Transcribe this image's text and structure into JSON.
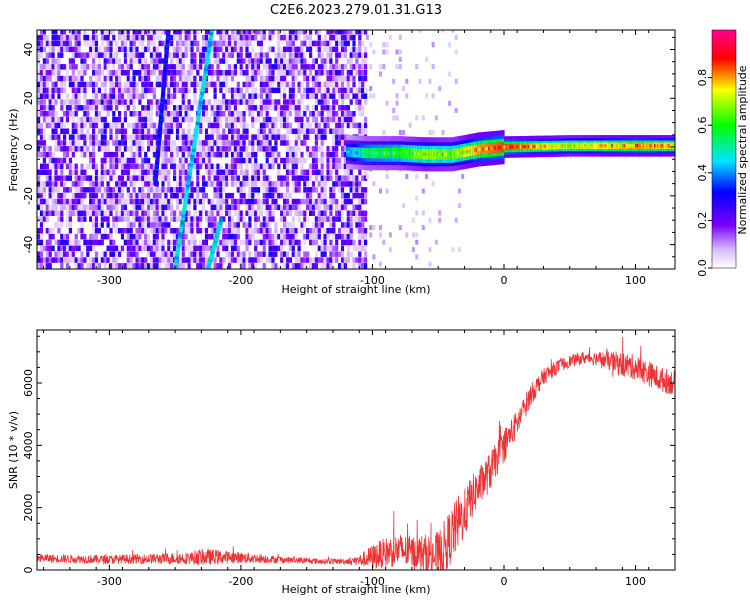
{
  "title": "C2E6.2023.279.01.31.G13",
  "chart_data": [
    {
      "type": "heatmap",
      "xlabel": "Height of straight line (km)",
      "ylabel": "Frequency (Hz)",
      "xlim": [
        -355,
        130
      ],
      "ylim": [
        -50,
        48
      ],
      "xticks": [
        -300,
        -200,
        -100,
        0,
        100
      ],
      "yticks": [
        -40,
        -20,
        0,
        20,
        40
      ],
      "colorbar": {
        "label": "Normalized spectral amplitude",
        "range": [
          0,
          1
        ],
        "ticks": [
          0.0,
          0.2,
          0.4,
          0.6,
          0.8
        ],
        "colors": [
          "#ffffff",
          "#d6b8ff",
          "#7a00ff",
          "#0000ff",
          "#00e6ff",
          "#00ff00",
          "#ffff00",
          "#ff0000",
          "#ff0090"
        ]
      },
      "features": {
        "noise_region_x": [
          -355,
          -105
        ],
        "carrier_line": [
          {
            "x": -120,
            "y": -2,
            "amp": 0.4
          },
          {
            "x": -105,
            "y": -2.5,
            "amp": 0.55
          },
          {
            "x": -80,
            "y": -2.5,
            "amp": 0.6
          },
          {
            "x": -60,
            "y": -3,
            "amp": 0.7
          },
          {
            "x": -40,
            "y": -3,
            "amp": 0.65
          },
          {
            "x": -20,
            "y": -1,
            "amp": 0.8
          },
          {
            "x": 0,
            "y": 0,
            "amp": 0.85
          },
          {
            "x": 50,
            "y": 0.5,
            "amp": 0.7
          },
          {
            "x": 100,
            "y": 0.5,
            "amp": 0.8
          },
          {
            "x": 130,
            "y": 0.5,
            "amp": 0.75
          }
        ],
        "diagonal_streaks": [
          {
            "x1": -265,
            "y1": -15,
            "x2": -255,
            "y2": 48,
            "amp": 0.3
          },
          {
            "x1": -250,
            "y1": -50,
            "x2": -222,
            "y2": 48,
            "amp": 0.45
          },
          {
            "x1": -225,
            "y1": -50,
            "x2": -215,
            "y2": -30,
            "amp": 0.45
          }
        ]
      }
    },
    {
      "type": "line",
      "xlabel": "Height of straight line (km)",
      "ylabel": "SNR (10 * v/v)",
      "xlim": [
        -355,
        130
      ],
      "ylim": [
        0,
        7700
      ],
      "xticks": [
        -300,
        -200,
        -100,
        0,
        100
      ],
      "yticks": [
        0,
        2000,
        4000,
        6000
      ],
      "color": "#ee3333",
      "series": [
        {
          "x": [
            -355,
            -330,
            -300,
            -270,
            -240,
            -230,
            -200,
            -170,
            -140,
            -120,
            -110,
            -100,
            -90,
            -80,
            -70,
            -60,
            -50,
            -40,
            -35,
            -30,
            -25,
            -20,
            -15,
            -10,
            -5,
            0,
            10,
            20,
            30,
            40,
            50,
            60,
            70,
            80,
            90,
            100,
            110,
            120,
            130
          ],
          "values": [
            380,
            360,
            340,
            360,
            380,
            420,
            400,
            330,
            280,
            280,
            310,
            420,
            560,
            640,
            560,
            520,
            420,
            1100,
            1500,
            1800,
            2300,
            2600,
            2900,
            3200,
            3600,
            4000,
            4700,
            5600,
            6200,
            6500,
            6700,
            6800,
            6800,
            6700,
            6600,
            6500,
            6300,
            6100,
            6000
          ],
          "noise": [
            150,
            150,
            160,
            180,
            220,
            300,
            200,
            120,
            100,
            100,
            200,
            450,
            550,
            600,
            600,
            700,
            900,
            1000,
            1000,
            900,
            800,
            700,
            700,
            700,
            600,
            600,
            500,
            400,
            300,
            250,
            220,
            220,
            250,
            350,
            450,
            450,
            450,
            450,
            450
          ]
        }
      ]
    }
  ]
}
